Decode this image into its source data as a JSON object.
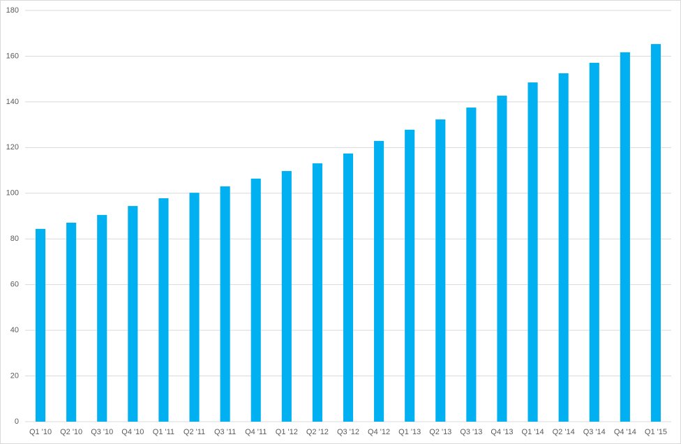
{
  "chart_data": {
    "type": "bar",
    "categories": [
      "Q1 '10",
      "Q2 '10",
      "Q3 '10",
      "Q4 '10",
      "Q1 '11",
      "Q2 '11",
      "Q3 '11",
      "Q4 '11",
      "Q1 '12",
      "Q2 '12",
      "Q3 '12",
      "Q4 '12",
      "Q1 '13",
      "Q2 '13",
      "Q3 '13",
      "Q4 '13",
      "Q1 '14",
      "Q2 '14",
      "Q3 '14",
      "Q4 '14",
      "Q1 '15"
    ],
    "values": [
      84.4,
      87.1,
      90.5,
      94.4,
      97.8,
      100.2,
      103,
      106.4,
      109.7,
      113.1,
      117.4,
      122.9,
      127.8,
      132.3,
      137.5,
      142.7,
      148.5,
      152.5,
      157.1,
      161.7,
      165.3
    ],
    "color": "#00b0f0",
    "ylim": [
      0,
      180
    ],
    "yticks": [
      0,
      20,
      40,
      60,
      80,
      100,
      120,
      140,
      160,
      180
    ],
    "grid": true
  }
}
